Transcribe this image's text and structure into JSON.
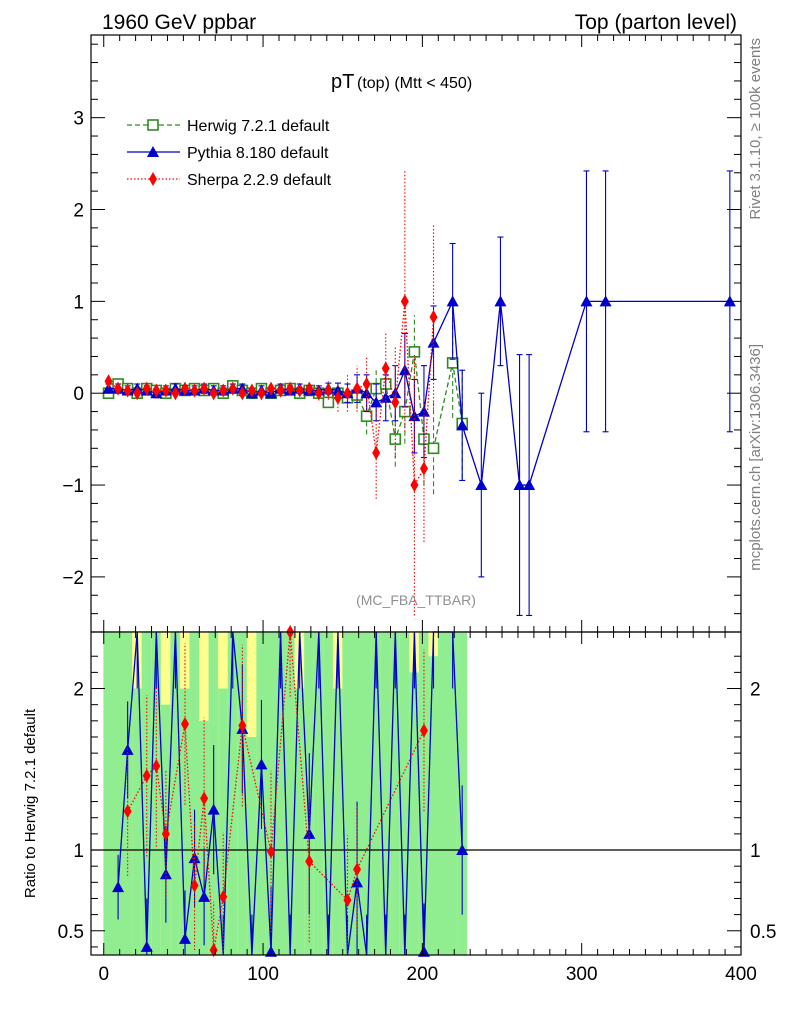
{
  "header": {
    "left_label": "1960 GeV ppbar",
    "right_label": "Top (parton level)"
  },
  "side_labels": {
    "rivet": "Rivet 3.1.10, ≥ 100k events",
    "source": "mcplots.cern.ch [arXiv:1306.3436]"
  },
  "analysis_tag": "(MC_FBA_TTBAR)",
  "colors": {
    "herwig": "#2e8b22",
    "pythia": "#0000cc",
    "sherpa": "#ff0000",
    "band_green": "#90ee90",
    "band_yellow": "#ffff90"
  },
  "chart_data": [
    {
      "type": "line",
      "title": "pT",
      "title_suffix": "(top) (Mtt < 450)",
      "xlabel": "",
      "ylabel": "",
      "xlim": [
        -8,
        400
      ],
      "ylim": [
        -2.6,
        3.9
      ],
      "yticks": [
        -2,
        -1,
        0,
        1,
        2,
        3
      ],
      "ytick_labels": [
        "−2",
        "−1",
        "0",
        "1",
        "2",
        "3"
      ],
      "legend": [
        {
          "name": "Herwig 7.2.1 default",
          "key": "herwig"
        },
        {
          "name": "Pythia 8.180 default",
          "key": "pythia"
        },
        {
          "name": "Sherpa 2.2.9 default",
          "key": "sherpa"
        }
      ],
      "series": [
        {
          "name": "Herwig 7.2.1 default",
          "key": "herwig",
          "marker": "open-square",
          "dash": "dashed",
          "x": [
            3,
            9,
            15,
            21,
            27,
            33,
            39,
            45,
            51,
            57,
            63,
            69,
            75,
            81,
            87,
            93,
            99,
            105,
            111,
            117,
            123,
            129,
            135,
            141,
            147,
            153,
            159,
            165,
            171,
            177,
            183,
            189,
            195,
            201,
            207,
            219,
            225
          ],
          "y": [
            0.0,
            0.1,
            0.05,
            0.0,
            0.05,
            0.03,
            0.0,
            0.05,
            0.03,
            0.05,
            0.03,
            0.05,
            0.0,
            0.08,
            0.03,
            0.0,
            0.05,
            0.0,
            0.03,
            0.05,
            0.0,
            0.03,
            0.0,
            -0.1,
            0.0,
            -0.05,
            -0.02,
            -0.25,
            0.05,
            0.1,
            -0.5,
            -0.2,
            0.45,
            -0.5,
            -0.6,
            0.33,
            -0.33
          ],
          "err": [
            0.05,
            0.05,
            0.05,
            0.05,
            0.05,
            0.05,
            0.05,
            0.05,
            0.05,
            0.05,
            0.05,
            0.05,
            0.05,
            0.05,
            0.05,
            0.05,
            0.05,
            0.05,
            0.05,
            0.05,
            0.05,
            0.05,
            0.05,
            0.06,
            0.08,
            0.1,
            0.15,
            0.2,
            0.2,
            0.25,
            0.3,
            0.35,
            0.4,
            0.5,
            0.5,
            0.6,
            0.6
          ]
        },
        {
          "name": "Pythia 8.180 default",
          "key": "pythia",
          "marker": "filled-triangle",
          "dash": "solid",
          "x": [
            3,
            9,
            15,
            21,
            27,
            33,
            39,
            45,
            51,
            57,
            63,
            69,
            75,
            81,
            87,
            93,
            99,
            105,
            111,
            117,
            123,
            129,
            135,
            141,
            147,
            153,
            159,
            165,
            171,
            177,
            183,
            189,
            195,
            201,
            207,
            219,
            225,
            237,
            249,
            261,
            267,
            303,
            315,
            393
          ],
          "y": [
            0.05,
            0.05,
            0.03,
            0.05,
            0.03,
            0.0,
            0.03,
            0.05,
            0.03,
            0.03,
            0.05,
            0.03,
            0.03,
            0.05,
            0.05,
            0.0,
            0.03,
            0.0,
            0.05,
            0.03,
            0.05,
            0.03,
            0.03,
            0.05,
            0.03,
            0.0,
            0.05,
            0.0,
            -0.1,
            -0.05,
            0.0,
            0.25,
            -0.25,
            -0.2,
            0.55,
            1.0,
            -0.35,
            -1.0,
            1.0,
            -1.0,
            -1.0,
            1.0,
            1.0,
            1.0
          ],
          "err": [
            0.05,
            0.05,
            0.05,
            0.05,
            0.05,
            0.05,
            0.05,
            0.05,
            0.05,
            0.05,
            0.05,
            0.05,
            0.05,
            0.05,
            0.05,
            0.05,
            0.05,
            0.05,
            0.05,
            0.05,
            0.05,
            0.05,
            0.05,
            0.06,
            0.08,
            0.1,
            0.15,
            0.2,
            0.2,
            0.25,
            0.3,
            0.4,
            0.4,
            0.5,
            0.4,
            0.63,
            0.6,
            1.0,
            0.7,
            1.42,
            1.42,
            1.42,
            1.42,
            1.42
          ]
        },
        {
          "name": "Sherpa 2.2.9 default",
          "key": "sherpa",
          "marker": "filled-diamond",
          "dash": "dotted",
          "x": [
            3,
            9,
            15,
            21,
            27,
            33,
            39,
            45,
            51,
            57,
            63,
            69,
            75,
            81,
            87,
            93,
            99,
            105,
            111,
            117,
            123,
            129,
            135,
            141,
            147,
            153,
            159,
            165,
            171,
            177,
            183,
            189,
            195,
            201,
            207
          ],
          "y": [
            0.13,
            0.05,
            0.03,
            0.0,
            0.05,
            0.03,
            0.03,
            0.0,
            0.05,
            0.03,
            0.05,
            0.0,
            0.03,
            0.05,
            0.0,
            0.03,
            0.0,
            0.05,
            0.03,
            0.05,
            0.03,
            0.05,
            0.0,
            0.03,
            -0.05,
            0.0,
            0.05,
            0.1,
            -0.65,
            0.27,
            -0.1,
            1.0,
            -1.0,
            -0.82,
            0.83
          ],
          "err": [
            0.06,
            0.06,
            0.06,
            0.06,
            0.06,
            0.06,
            0.06,
            0.06,
            0.06,
            0.06,
            0.06,
            0.06,
            0.06,
            0.06,
            0.06,
            0.06,
            0.06,
            0.06,
            0.06,
            0.06,
            0.06,
            0.06,
            0.08,
            0.1,
            0.15,
            0.2,
            0.25,
            0.3,
            0.5,
            0.4,
            0.6,
            1.42,
            1.42,
            0.8,
            1.0
          ]
        }
      ]
    },
    {
      "type": "line",
      "title": "",
      "xlabel": "",
      "ylabel": "Ratio to Herwig 7.2.1 default",
      "xlim": [
        -8,
        400
      ],
      "ylim": [
        0.35,
        2.35
      ],
      "xticks": [
        0,
        100,
        200,
        300,
        400
      ],
      "xtick_labels": [
        "0",
        "100",
        "200",
        "300",
        "400"
      ],
      "yticks": [
        0.5,
        1,
        2
      ],
      "ytick_labels": [
        "0.5",
        "1",
        "2"
      ],
      "reference_line": 1,
      "bands": {
        "x": [
          3,
          9,
          15,
          21,
          27,
          33,
          39,
          45,
          51,
          57,
          63,
          69,
          75,
          81,
          87,
          93,
          99,
          105,
          111,
          117,
          123,
          129,
          135,
          141,
          147,
          153,
          159,
          165,
          171,
          177,
          183,
          189,
          195,
          201,
          207,
          213,
          219,
          225
        ],
        "green_lo": [
          0.35,
          0.35,
          0.35,
          0.35,
          0.35,
          0.35,
          0.35,
          0.35,
          0.35,
          0.35,
          0.35,
          0.35,
          0.35,
          0.35,
          0.35,
          0.35,
          0.35,
          0.35,
          0.35,
          0.35,
          0.35,
          0.35,
          0.35,
          0.35,
          0.35,
          0.35,
          0.35,
          0.35,
          0.35,
          0.35,
          0.35,
          0.35,
          0.35,
          0.35,
          0.35,
          0.35,
          0.35,
          0.35
        ],
        "green_hi": [
          2.35,
          2.35,
          2.35,
          2.0,
          2.35,
          2.35,
          1.9,
          2.35,
          2.0,
          2.35,
          1.8,
          2.35,
          2.0,
          2.35,
          2.35,
          1.7,
          2.35,
          2.35,
          2.35,
          2.35,
          2.0,
          2.35,
          2.35,
          2.35,
          2.0,
          2.35,
          2.35,
          2.35,
          2.35,
          2.35,
          2.35,
          2.35,
          2.1,
          2.35,
          2.2,
          2.35,
          2.35,
          2.35
        ],
        "yellow_hi": [
          2.35,
          2.35,
          2.35,
          2.35,
          2.35,
          2.35,
          2.35,
          2.35,
          2.35,
          2.35,
          2.35,
          2.35,
          2.35,
          2.35,
          2.35,
          2.35,
          2.35,
          2.35,
          2.35,
          2.35,
          2.35,
          2.35,
          2.35,
          2.35,
          2.35,
          2.35,
          2.35,
          2.35,
          2.35,
          2.35,
          2.35,
          2.35,
          2.35,
          2.35,
          2.35,
          2.35,
          2.35,
          2.35
        ]
      },
      "series": [
        {
          "name": "Pythia 8.180 default",
          "key": "pythia",
          "marker": "filled-triangle",
          "x": [
            9,
            15,
            21,
            27,
            33,
            39,
            45,
            51,
            57,
            63,
            69,
            75,
            81,
            87,
            93,
            99,
            105,
            111,
            117,
            123,
            129,
            135,
            141,
            147,
            153,
            159,
            165,
            171,
            177,
            183,
            189,
            195,
            201,
            207,
            219,
            225
          ],
          "y": [
            0.77,
            1.62,
            2.4,
            0.4,
            2.4,
            0.85,
            2.4,
            0.45,
            0.95,
            0.71,
            1.25,
            0.3,
            2.4,
            1.75,
            0.3,
            1.53,
            0.37,
            2.4,
            0.3,
            2.4,
            1.1,
            2.4,
            0.3,
            2.4,
            0.3,
            0.8,
            0.3,
            2.4,
            0.3,
            2.4,
            0.3,
            2.4,
            0.37,
            2.4,
            2.4,
            1.0
          ],
          "err": [
            0.2,
            0.3,
            0.4,
            0.3,
            0.4,
            0.3,
            0.4,
            0.3,
            0.3,
            0.3,
            0.4,
            0.3,
            0.4,
            0.4,
            0.3,
            0.4,
            0.4,
            0.4,
            0.3,
            0.4,
            0.5,
            0.4,
            0.3,
            0.4,
            0.3,
            0.5,
            0.3,
            0.4,
            0.3,
            0.4,
            0.3,
            0.4,
            0.3,
            0.4,
            0.4,
            0.4
          ]
        },
        {
          "name": "Sherpa 2.2.9 default",
          "key": "sherpa",
          "marker": "filled-diamond",
          "x": [
            15,
            27,
            33,
            39,
            51,
            57,
            63,
            69,
            75,
            87,
            105,
            117,
            129,
            153,
            159,
            201
          ],
          "y": [
            1.24,
            1.46,
            1.52,
            1.1,
            1.78,
            0.78,
            1.32,
            0.38,
            0.71,
            1.77,
            0.99,
            2.35,
            0.93,
            0.69,
            0.88,
            1.74
          ],
          "err": [
            0.4,
            0.5,
            0.5,
            0.4,
            0.5,
            0.4,
            0.5,
            0.3,
            0.4,
            0.5,
            0.5,
            0.4,
            0.5,
            0.4,
            0.4,
            0.5
          ]
        }
      ]
    }
  ]
}
